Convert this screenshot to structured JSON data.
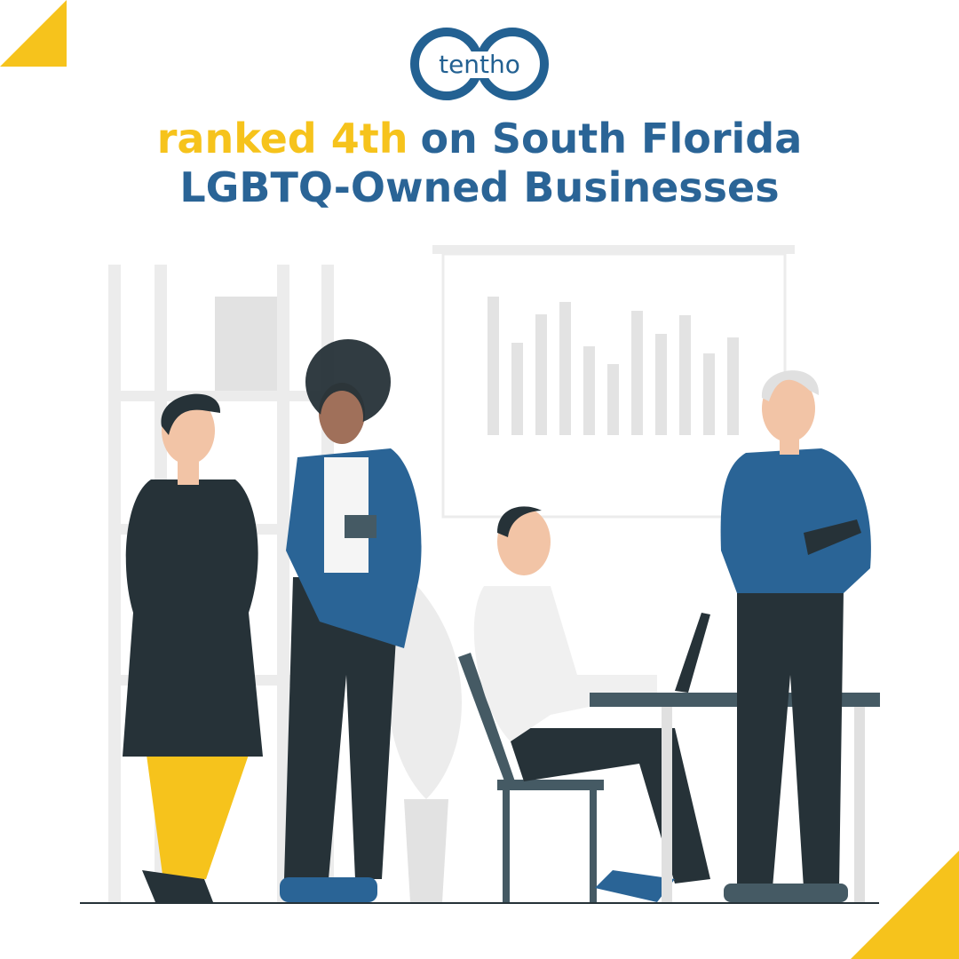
{
  "logo": {
    "text": "tentho"
  },
  "headline": {
    "highlight": "ranked 4th",
    "rest": "on South Florida",
    "line2": "LGBTQ-Owned Businesses"
  }
}
